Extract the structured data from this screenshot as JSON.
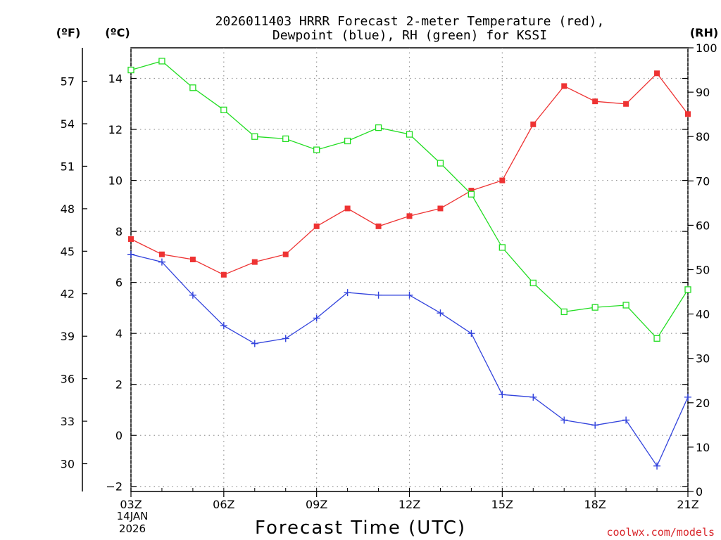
{
  "chart_data": {
    "type": "line",
    "title_line1": "2026011403 HRRR Forecast 2-meter Temperature (red),",
    "title_line2": "Dewpoint (blue), RH (green) for KSSI",
    "xlabel": "Forecast Time (UTC)",
    "left_outer_unit": "(ºF)",
    "left_inner_unit": "(ºC)",
    "right_unit": "(RH)",
    "date_line1": "14JAN",
    "date_line2": "2026",
    "credit": "coolwx.com/models",
    "x_hours": [
      3,
      4,
      5,
      6,
      7,
      8,
      9,
      10,
      11,
      12,
      13,
      14,
      15,
      16,
      17,
      18,
      19,
      20,
      21
    ],
    "x_ticks": [
      "03Z",
      "06Z",
      "09Z",
      "12Z",
      "15Z",
      "18Z",
      "21Z"
    ],
    "x_tick_hours": [
      3,
      6,
      9,
      12,
      15,
      18,
      21
    ],
    "celsius_ylim": [
      -2.2,
      15.2
    ],
    "celsius_ticks": [
      "−2",
      "0",
      "2",
      "4",
      "6",
      "8",
      "10",
      "12",
      "14"
    ],
    "celsius_tick_values": [
      -2,
      0,
      2,
      4,
      6,
      8,
      10,
      12,
      14
    ],
    "fahrenheit_ticks": [
      "30",
      "33",
      "36",
      "39",
      "42",
      "45",
      "48",
      "51",
      "54",
      "57"
    ],
    "fahrenheit_tick_values": [
      30,
      33,
      36,
      39,
      42,
      45,
      48,
      51,
      54,
      57
    ],
    "rh_ylim": [
      0,
      100
    ],
    "rh_ticks": [
      "0",
      "10",
      "20",
      "30",
      "40",
      "50",
      "60",
      "70",
      "80",
      "90",
      "100"
    ],
    "rh_tick_values": [
      0,
      10,
      20,
      30,
      40,
      50,
      60,
      70,
      80,
      90,
      100
    ],
    "series": [
      {
        "name": "Temperature",
        "axis": "C",
        "color": "#ee3333",
        "marker": "filled-square",
        "values": [
          7.7,
          7.1,
          6.9,
          6.3,
          6.8,
          7.1,
          8.2,
          8.9,
          8.2,
          8.6,
          8.9,
          9.6,
          10.0,
          12.2,
          13.7,
          13.1,
          13.0,
          14.2,
          12.6
        ]
      },
      {
        "name": "Dewpoint",
        "axis": "C",
        "color": "#3344dd",
        "marker": "plus",
        "values": [
          7.1,
          6.8,
          5.5,
          4.3,
          3.6,
          3.8,
          4.6,
          5.6,
          5.5,
          5.5,
          4.8,
          4.0,
          1.6,
          1.5,
          0.6,
          0.4,
          0.6,
          -1.2,
          1.5
        ]
      },
      {
        "name": "RH",
        "axis": "RH",
        "color": "#22dd22",
        "marker": "open-square",
        "values": [
          95,
          97,
          91,
          86,
          80,
          79.5,
          77,
          79,
          82,
          80.5,
          74,
          67,
          55,
          47,
          40.5,
          41.5,
          42,
          34.5,
          45.5
        ]
      }
    ]
  }
}
